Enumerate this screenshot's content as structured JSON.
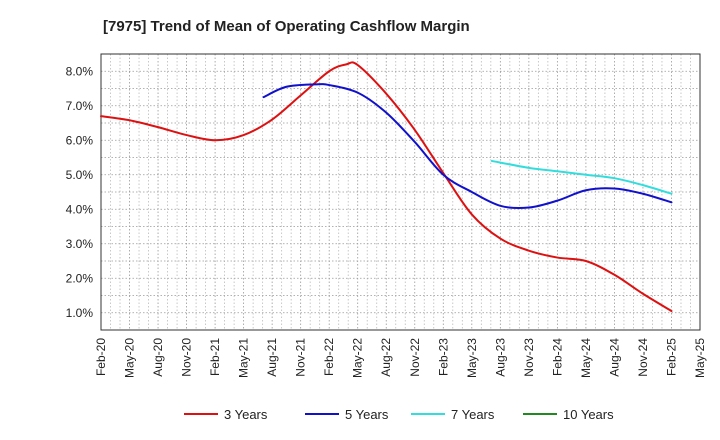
{
  "chart_data": {
    "type": "line",
    "title": "[7975]  Trend of Mean of Operating Cashflow Margin",
    "xlabel": "",
    "ylabel": "",
    "ylim": [
      0.5,
      8.5
    ],
    "yticks": [
      1.0,
      2.0,
      3.0,
      4.0,
      5.0,
      6.0,
      7.0,
      8.0
    ],
    "ytick_labels": [
      "1.0%",
      "2.0%",
      "3.0%",
      "4.0%",
      "5.0%",
      "6.0%",
      "7.0%",
      "8.0%"
    ],
    "x_labels": [
      "Feb-20",
      "May-20",
      "Aug-20",
      "Nov-20",
      "Feb-21",
      "May-21",
      "Aug-21",
      "Nov-21",
      "Feb-22",
      "May-22",
      "Aug-22",
      "Nov-22",
      "Feb-23",
      "May-23",
      "Aug-23",
      "Nov-23",
      "Feb-24",
      "May-24",
      "Aug-24",
      "Nov-24",
      "Feb-25",
      "May-25"
    ],
    "grid": true,
    "legend_position": "bottom",
    "series": [
      {
        "name": "3 Years",
        "color": "#dd1111",
        "points": [
          [
            0,
            6.7
          ],
          [
            1,
            6.58
          ],
          [
            2,
            6.38
          ],
          [
            3,
            6.15
          ],
          [
            4,
            6.0
          ],
          [
            5,
            6.15
          ],
          [
            6,
            6.6
          ],
          [
            7,
            7.3
          ],
          [
            8,
            8.0
          ],
          [
            8.6,
            8.2
          ],
          [
            9,
            8.18
          ],
          [
            10,
            7.35
          ],
          [
            11,
            6.3
          ],
          [
            12,
            5.05
          ],
          [
            13,
            3.85
          ],
          [
            14,
            3.15
          ],
          [
            15,
            2.8
          ],
          [
            16,
            2.6
          ],
          [
            17,
            2.5
          ],
          [
            18,
            2.1
          ],
          [
            19,
            1.55
          ],
          [
            20,
            1.05
          ]
        ]
      },
      {
        "name": "5 Years",
        "color": "#1111cc",
        "points": [
          [
            5.7,
            7.25
          ],
          [
            6.5,
            7.55
          ],
          [
            7.5,
            7.62
          ],
          [
            8,
            7.6
          ],
          [
            9,
            7.38
          ],
          [
            10,
            6.8
          ],
          [
            11,
            5.95
          ],
          [
            12,
            5.0
          ],
          [
            13,
            4.5
          ],
          [
            14,
            4.1
          ],
          [
            15,
            4.05
          ],
          [
            16,
            4.25
          ],
          [
            17,
            4.55
          ],
          [
            18,
            4.6
          ],
          [
            19,
            4.45
          ],
          [
            20,
            4.2
          ]
        ]
      },
      {
        "name": "7 Years",
        "color": "#33dddd",
        "points": [
          [
            13.7,
            5.4
          ],
          [
            15,
            5.2
          ],
          [
            16,
            5.1
          ],
          [
            17,
            5.0
          ],
          [
            18,
            4.9
          ],
          [
            19,
            4.7
          ],
          [
            20,
            4.45
          ]
        ]
      },
      {
        "name": "10 Years",
        "color": "#228822",
        "points": []
      }
    ]
  }
}
